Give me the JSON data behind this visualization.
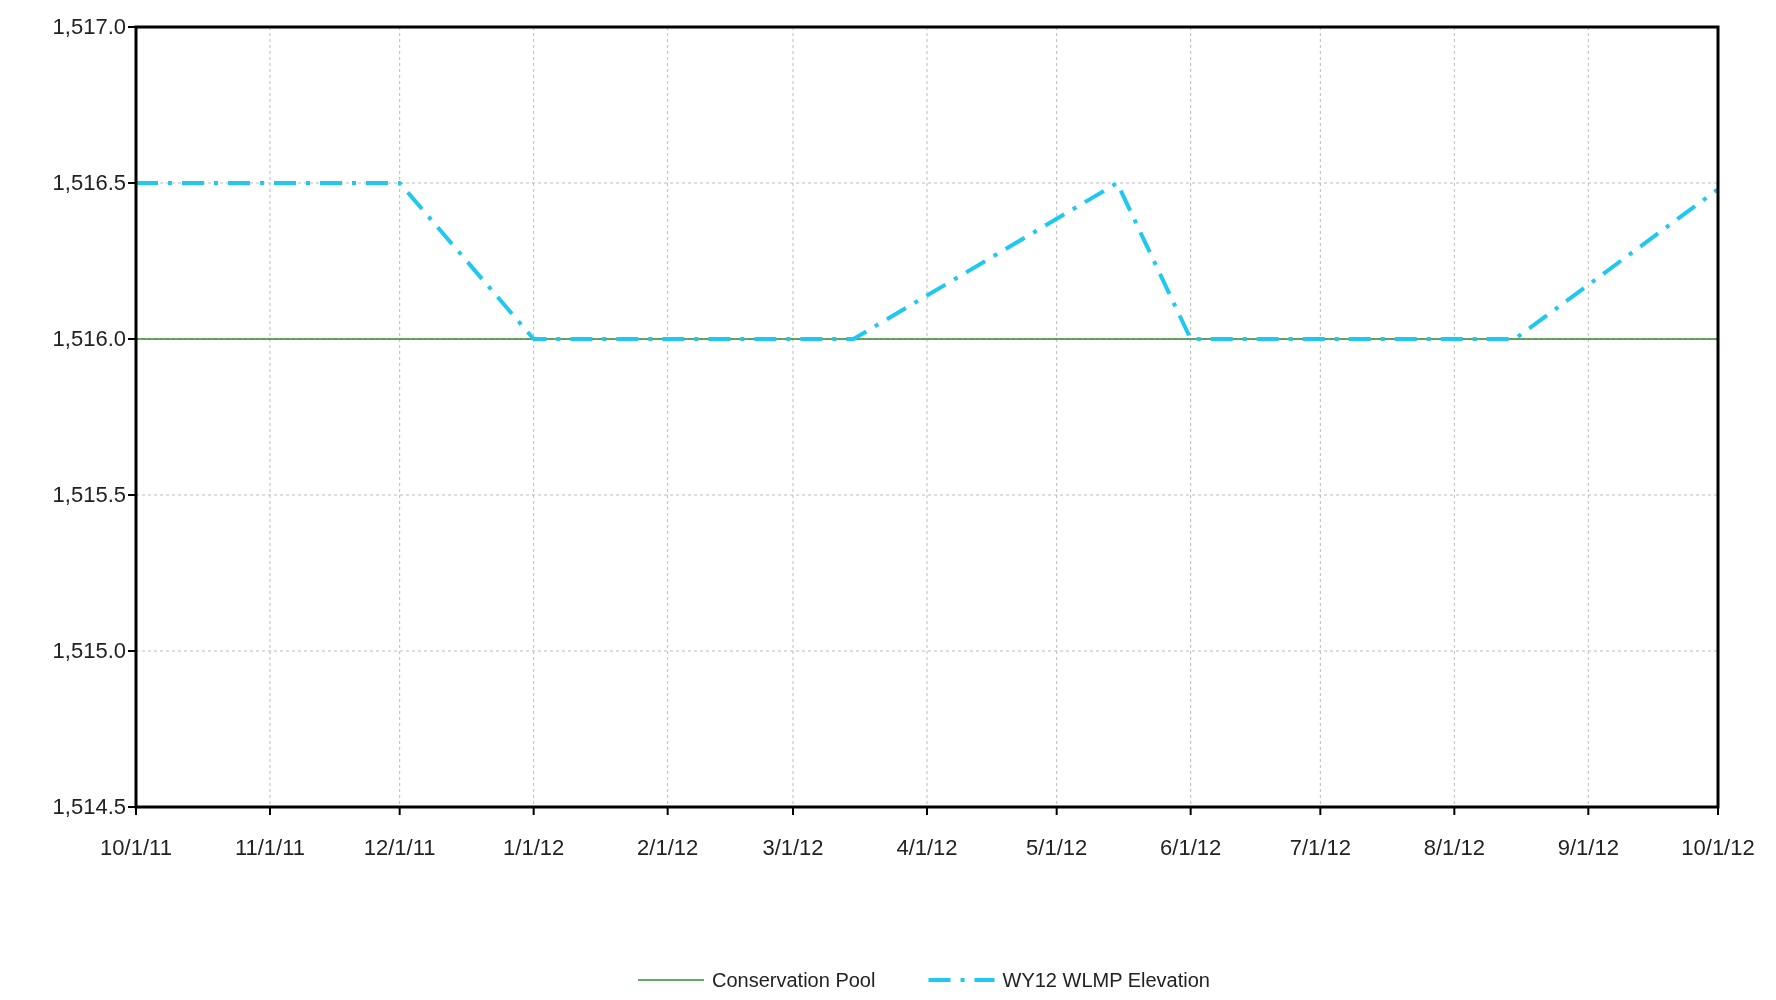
{
  "chart_data": {
    "type": "line",
    "xlim": [
      "2011-10-01",
      "2012-10-01"
    ],
    "xticks": [
      {
        "value": "2011-10-01",
        "label": "10/1/11"
      },
      {
        "value": "2011-11-01",
        "label": "11/1/11"
      },
      {
        "value": "2011-12-01",
        "label": "12/1/11"
      },
      {
        "value": "2012-01-01",
        "label": "1/1/12"
      },
      {
        "value": "2012-02-01",
        "label": "2/1/12"
      },
      {
        "value": "2012-03-01",
        "label": "3/1/12"
      },
      {
        "value": "2012-04-01",
        "label": "4/1/12"
      },
      {
        "value": "2012-05-01",
        "label": "5/1/12"
      },
      {
        "value": "2012-06-01",
        "label": "6/1/12"
      },
      {
        "value": "2012-07-01",
        "label": "7/1/12"
      },
      {
        "value": "2012-08-01",
        "label": "8/1/12"
      },
      {
        "value": "2012-09-01",
        "label": "9/1/12"
      },
      {
        "value": "2012-10-01",
        "label": "10/1/12"
      }
    ],
    "ylim": [
      1514.5,
      1517
    ],
    "yticks": [
      {
        "value": 1514.5,
        "label": "1,514.5"
      },
      {
        "value": 1515,
        "label": "1,515.0"
      },
      {
        "value": 1515.5,
        "label": "1,515.5"
      },
      {
        "value": 1516,
        "label": "1,516.0"
      },
      {
        "value": 1516.5,
        "label": "1,516.5"
      },
      {
        "value": 1517,
        "label": "1,517.0"
      }
    ],
    "grid": true,
    "legend": "bottom",
    "marker": "none",
    "series": [
      {
        "name": "Conservation Pool",
        "color": "#2e8b2e",
        "line_style": "solid",
        "x": [
          "2011-10-01",
          "2012-10-01"
        ],
        "values": [
          1516,
          1516
        ]
      },
      {
        "name": "WY12 WLMP Elevation",
        "color": "#1ec8f0",
        "line_style": "dashdot",
        "x": [
          "2011-10-01",
          "2011-12-01",
          "2012-01-01",
          "2012-03-15",
          "2012-05-15",
          "2012-06-01",
          "2012-08-15",
          "2012-10-01"
        ],
        "values": [
          1516.5,
          1516.5,
          1516,
          1516,
          1516.5,
          1516,
          1516,
          1516.48
        ]
      }
    ]
  }
}
